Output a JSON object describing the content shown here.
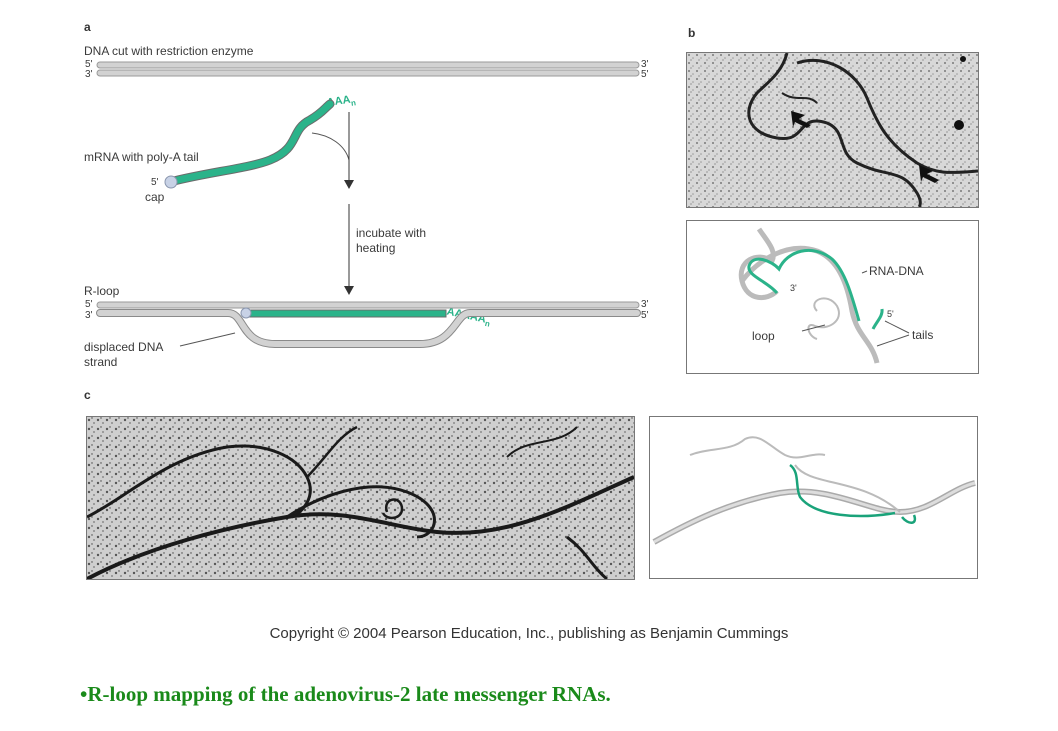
{
  "panel_a": {
    "letter": "a",
    "dna_title": "DNA cut with restriction enzyme",
    "five_prime": "5'",
    "three_prime": "3'",
    "poly_a": "AAA",
    "poly_a_sub": "n",
    "mrna_label": "mRNA with poly-A tail",
    "cap_label": "cap",
    "step_label_line1": "incubate with",
    "step_label_line2": "heating",
    "rloop_title": "R-loop",
    "rloop_poly_a": "AAAAA",
    "displaced_line1": "displaced DNA",
    "displaced_line2": "strand"
  },
  "panel_b": {
    "letter": "b",
    "rna_dna_label": "RNA-DNA",
    "three_prime": "3'",
    "five_prime": "5'",
    "loop_label": "loop",
    "tails_label": "tails"
  },
  "panel_c": {
    "letter": "c"
  },
  "copyright": "Copyright © 2004 Pearson Education, Inc., publishing as Benjamin Cummings",
  "caption": "•R-loop mapping of the adenovirus-2 late messenger RNAs.",
  "colors": {
    "rna_green": "#2bb38a",
    "dna_gray": "#c8c8c8",
    "caption_green": "#1a8a1a",
    "cap_blue": "#c8d2e6"
  }
}
